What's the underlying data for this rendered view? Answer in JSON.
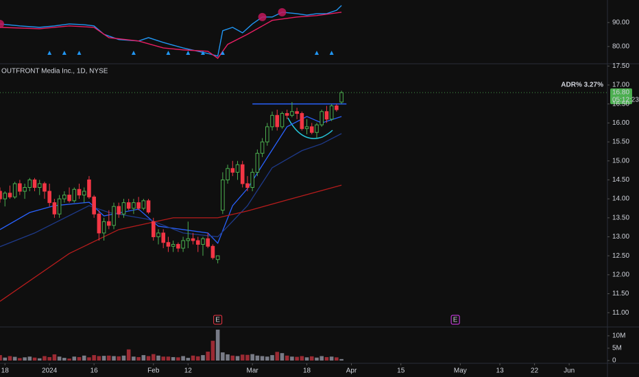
{
  "chart_data": {
    "type": "candlestick",
    "title": "OUTFRONT Media Inc., 1D, NYSE",
    "x": [
      0,
      1,
      2,
      3,
      4,
      5,
      6,
      7,
      8,
      9,
      10,
      11,
      12,
      13,
      14,
      15,
      16,
      17,
      18,
      19,
      20,
      21,
      22,
      23,
      24,
      25,
      26,
      27,
      28,
      29,
      30,
      31,
      32,
      33,
      34,
      35,
      36,
      37,
      38,
      39,
      40,
      41,
      42,
      43,
      44,
      45,
      46,
      47,
      48,
      49,
      50,
      51,
      52,
      53,
      54,
      55,
      56,
      57,
      58,
      59,
      60,
      61,
      62,
      63,
      64,
      65,
      66,
      67,
      68,
      69
    ],
    "open": [
      14.2,
      14.0,
      14.15,
      14.05,
      14.4,
      14.2,
      14.3,
      14.5,
      14.3,
      14.4,
      14.2,
      13.9,
      13.6,
      14.0,
      14.1,
      13.95,
      14.25,
      14.1,
      14.5,
      14.05,
      13.6,
      13.1,
      13.4,
      13.3,
      13.8,
      13.6,
      13.9,
      13.75,
      13.9,
      13.75,
      13.95,
      13.4,
      13.0,
      13.1,
      12.85,
      12.75,
      12.8,
      12.7,
      12.9,
      12.95,
      12.9,
      12.8,
      12.95,
      12.75,
      12.4,
      13.7,
      14.5,
      14.8,
      14.7,
      14.9,
      14.4,
      14.3,
      14.7,
      15.2,
      15.5,
      15.9,
      16.2,
      15.9,
      16.25,
      16.2,
      16.3,
      16.25,
      15.85,
      15.9,
      15.75,
      15.95,
      16.3,
      16.1,
      16.45,
      16.55
    ],
    "high": [
      14.3,
      14.2,
      14.35,
      14.45,
      14.5,
      14.4,
      14.55,
      14.55,
      14.5,
      14.45,
      14.4,
      14.0,
      14.1,
      14.2,
      14.3,
      14.3,
      14.4,
      14.3,
      14.6,
      14.1,
      13.7,
      13.5,
      13.7,
      13.9,
      13.9,
      14.0,
      14.0,
      14.0,
      14.05,
      14.0,
      14.0,
      13.5,
      13.2,
      13.2,
      13.0,
      12.9,
      12.85,
      13.0,
      13.4,
      13.1,
      13.0,
      13.0,
      13.1,
      12.8,
      12.5,
      14.7,
      14.9,
      15.0,
      15.0,
      15.0,
      14.6,
      14.8,
      15.3,
      15.6,
      16.0,
      16.3,
      16.35,
      16.3,
      16.35,
      16.55,
      16.4,
      16.3,
      16.1,
      16.0,
      16.0,
      16.35,
      16.45,
      16.5,
      16.5,
      16.85
    ],
    "low": [
      13.9,
      13.8,
      14.0,
      14.0,
      14.1,
      14.0,
      14.2,
      14.2,
      14.1,
      14.0,
      13.8,
      13.5,
      13.5,
      13.9,
      13.9,
      13.9,
      14.0,
      13.9,
      14.0,
      13.5,
      12.9,
      12.9,
      13.2,
      13.2,
      13.5,
      13.5,
      13.7,
      13.6,
      13.7,
      13.7,
      13.6,
      12.9,
      12.8,
      12.7,
      12.6,
      12.6,
      12.6,
      12.6,
      12.7,
      12.8,
      12.6,
      12.5,
      12.7,
      12.4,
      12.3,
      13.6,
      14.4,
      14.6,
      14.5,
      14.3,
      14.2,
      14.2,
      14.6,
      15.1,
      15.4,
      15.8,
      15.8,
      15.85,
      16.1,
      16.15,
      16.1,
      15.8,
      15.7,
      15.7,
      15.6,
      15.9,
      16.0,
      16.05,
      16.3,
      16.5
    ],
    "close": [
      14.0,
      14.15,
      14.05,
      14.4,
      14.2,
      14.3,
      14.5,
      14.3,
      14.4,
      14.2,
      13.9,
      13.6,
      14.0,
      14.1,
      13.95,
      14.25,
      14.1,
      14.2,
      14.05,
      13.6,
      13.1,
      13.4,
      13.3,
      13.8,
      13.6,
      13.9,
      13.75,
      13.9,
      13.75,
      13.95,
      13.65,
      13.0,
      13.1,
      12.85,
      12.75,
      12.8,
      12.7,
      12.9,
      12.95,
      12.9,
      12.8,
      12.95,
      12.75,
      12.45,
      12.5,
      14.5,
      14.8,
      14.7,
      14.9,
      14.4,
      14.3,
      14.7,
      15.2,
      15.5,
      15.9,
      16.2,
      15.9,
      16.25,
      16.2,
      16.3,
      16.25,
      15.85,
      15.9,
      15.75,
      15.95,
      16.3,
      16.1,
      16.45,
      16.35,
      16.8
    ],
    "up_color": "#4caf50",
    "down_color": "#f23645",
    "xlim": [
      0,
      122.6
    ],
    "xticks": [
      {
        "value": 1,
        "label": "18"
      },
      {
        "value": 10,
        "label": "2024"
      },
      {
        "value": 19,
        "label": "16"
      },
      {
        "value": 31,
        "label": "Feb"
      },
      {
        "value": 38,
        "label": "12"
      },
      {
        "value": 51,
        "label": "Mar"
      },
      {
        "value": 62,
        "label": "18"
      },
      {
        "value": 71,
        "label": "Apr"
      },
      {
        "value": 81,
        "label": "15"
      },
      {
        "value": 93,
        "label": "May"
      },
      {
        "value": 101,
        "label": "13"
      },
      {
        "value": 108,
        "label": "22"
      },
      {
        "value": 115,
        "label": "Jun"
      }
    ],
    "ylim": [
      10.66,
      17.56
    ],
    "yticks": [
      {
        "value": 17.5,
        "label": "17.50"
      },
      {
        "value": 17,
        "label": "17.00"
      },
      {
        "value": 16.5,
        "label": "16.50"
      },
      {
        "value": 16,
        "label": "16.00"
      },
      {
        "value": 15.5,
        "label": "15.50"
      },
      {
        "value": 15,
        "label": "15.00"
      },
      {
        "value": 14.5,
        "label": "14.50"
      },
      {
        "value": 14,
        "label": "14.00"
      },
      {
        "value": 13.5,
        "label": "13.50"
      },
      {
        "value": 13,
        "label": "13.00"
      },
      {
        "value": 12.5,
        "label": "12.50"
      },
      {
        "value": 12,
        "label": "12.00"
      },
      {
        "value": 11.5,
        "label": "11.50"
      },
      {
        "value": 11,
        "label": "11.00"
      }
    ],
    "lines": [
      {
        "color": "#2962ff",
        "x": [
          0,
          6,
          11,
          18,
          21,
          28,
          32,
          37,
          42,
          44,
          47,
          50,
          54,
          58,
          62,
          65,
          69
        ],
        "values": [
          13.19,
          13.64,
          13.82,
          13.91,
          13.55,
          13.73,
          13.28,
          13.19,
          13.1,
          12.83,
          13.82,
          14.27,
          15.09,
          15.9,
          16.17,
          16.0,
          16.17
        ]
      },
      {
        "color": "#1e3a8a",
        "x": [
          0,
          7,
          18,
          22,
          30,
          37,
          44,
          50,
          55,
          61,
          65,
          69
        ],
        "values": [
          12.74,
          13.1,
          13.82,
          13.64,
          13.46,
          13.1,
          13.0,
          13.82,
          14.82,
          15.27,
          15.45,
          15.72
        ]
      },
      {
        "color": "#b71c1c",
        "x": [
          0,
          14,
          24,
          35,
          44,
          50,
          58,
          69
        ],
        "values": [
          11.3,
          12.56,
          13.19,
          13.5,
          13.5,
          13.68,
          13.97,
          14.36
        ]
      }
    ],
    "level": {
      "value": 16.5,
      "x": [
        51,
        70
      ],
      "color": "#2962ff"
    },
    "adr": "ADR%  3.27%",
    "last_price": {
      "value": 16.8,
      "label": "16.80"
    },
    "countdown": "05:12:23",
    "earnings": [
      {
        "x": 44,
        "label": "E",
        "color": "#f23645"
      },
      {
        "x": 92,
        "label": "E",
        "color": "#e040fb"
      }
    ],
    "volume": {
      "values": [
        2.2,
        1.2,
        1.8,
        1.5,
        1.0,
        1.3,
        1.6,
        1.2,
        0.9,
        1.8,
        1.4,
        2.5,
        1.6,
        1.1,
        0.8,
        1.6,
        1.4,
        2.0,
        1.3,
        2.2,
        1.8,
        1.9,
        2.0,
        1.8,
        1.7,
        2.0,
        4.5,
        1.6,
        1.4,
        2.2,
        1.8,
        2.6,
        2.0,
        1.6,
        1.6,
        1.4,
        1.3,
        1.8,
        1.1,
        2.0,
        1.7,
        2.2,
        3.6,
        8.0,
        12.5,
        3.3,
        2.5,
        2.0,
        1.8,
        2.4,
        2.3,
        2.6,
        2.0,
        1.8,
        1.6,
        2.2,
        3.5,
        3.0,
        2.0,
        1.6,
        1.5,
        1.8,
        1.3,
        1.7,
        1.2,
        1.8,
        1.4,
        1.6,
        1.3,
        0.6
      ],
      "up_color": "#787b86",
      "down_color": "#9b2a33",
      "ylim": [
        0,
        13.3
      ],
      "yticks": [
        {
          "value": 10,
          "label": "10M"
        },
        {
          "value": 5,
          "label": "5M"
        },
        0
      ]
    },
    "indicator": {
      "ylim": [
        73.1,
        99.4
      ],
      "yticks": [
        {
          "value": 90,
          "label": "90.00"
        },
        {
          "value": 80,
          "label": "80.00"
        }
      ],
      "series": [
        {
          "color": "#2196f3",
          "x": [
            0,
            4,
            8,
            11,
            14,
            17,
            19,
            21,
            24,
            28,
            30,
            33,
            37,
            42,
            44,
            45,
            47,
            49,
            51,
            53,
            55,
            57,
            60,
            62,
            64,
            66,
            68,
            69
          ],
          "values": [
            89.4,
            88.6,
            88,
            88.6,
            89.4,
            89.1,
            88.6,
            85.1,
            82.9,
            82.3,
            83.7,
            81.7,
            79.4,
            77.1,
            76,
            86.6,
            88,
            85.7,
            89.4,
            92.3,
            92.3,
            94.3,
            93.7,
            93.1,
            93.7,
            93.7,
            95.1,
            97.1
          ]
        },
        {
          "color": "#e91e63",
          "x": [
            0,
            8,
            14,
            19,
            22,
            28,
            33,
            37,
            42,
            44,
            46,
            50,
            55,
            60,
            64,
            69
          ],
          "values": [
            88,
            87.4,
            88.6,
            88,
            83.7,
            82.3,
            79.4,
            78.6,
            78,
            75.1,
            80.9,
            85.1,
            90.9,
            92.3,
            92.9,
            94.3
          ]
        }
      ],
      "triangles": {
        "color": "#2196f3",
        "x": [
          10,
          13,
          16,
          27,
          34,
          38,
          41,
          45,
          64,
          67
        ]
      },
      "circles": {
        "color": "#c2185b",
        "x": [
          0,
          53,
          57
        ],
        "values": [
          89.4,
          92.3,
          94.3
        ]
      }
    }
  }
}
